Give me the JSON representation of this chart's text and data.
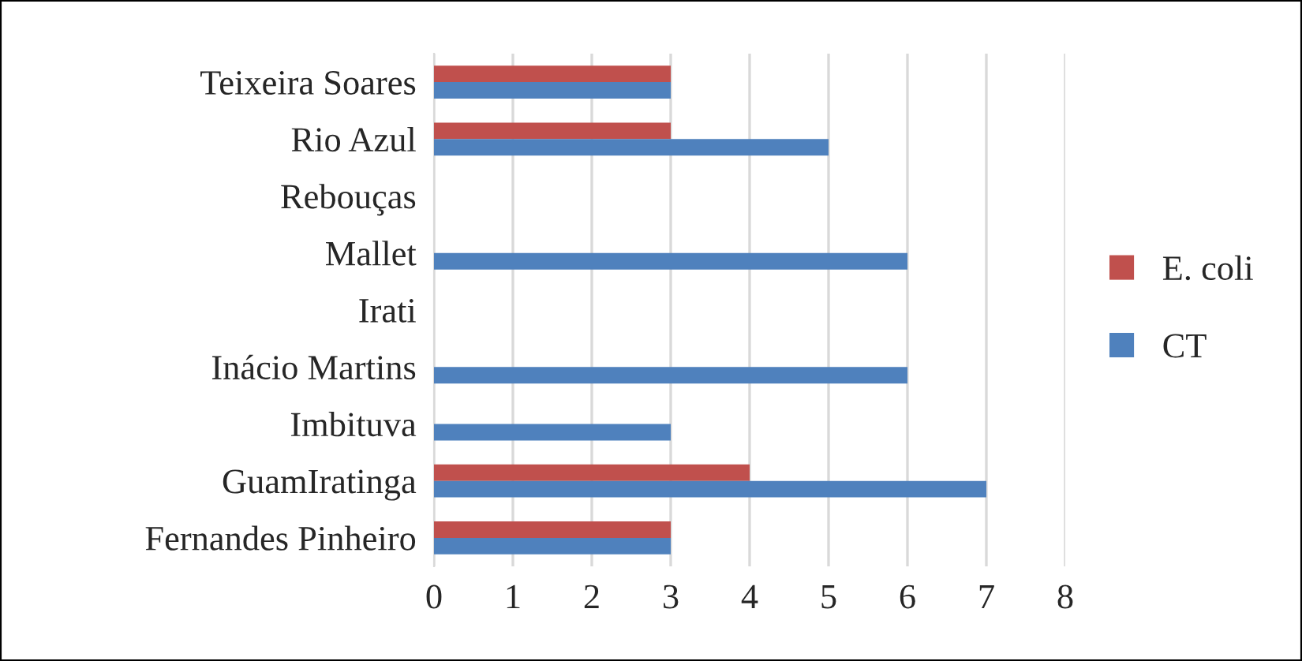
{
  "chart_data": {
    "type": "bar",
    "orientation": "horizontal",
    "categories": [
      "Teixeira Soares",
      "Rio Azul",
      "Rebouças",
      "Mallet",
      "Irati",
      "Inácio Martins",
      "Imbituva",
      "GuamIratinga",
      "Fernandes Pinheiro"
    ],
    "series": [
      {
        "name": "E. coli",
        "color": "#c0504d",
        "values": [
          3,
          3,
          null,
          null,
          null,
          null,
          null,
          4,
          3
        ]
      },
      {
        "name": "CT",
        "color": "#4f81bd",
        "values": [
          3,
          5,
          null,
          6,
          null,
          6,
          3,
          7,
          3
        ]
      }
    ],
    "xlim": [
      0,
      8
    ],
    "xticks": [
      0,
      1,
      2,
      3,
      4,
      5,
      6,
      7,
      8
    ],
    "grid": "x",
    "legend": "right"
  }
}
